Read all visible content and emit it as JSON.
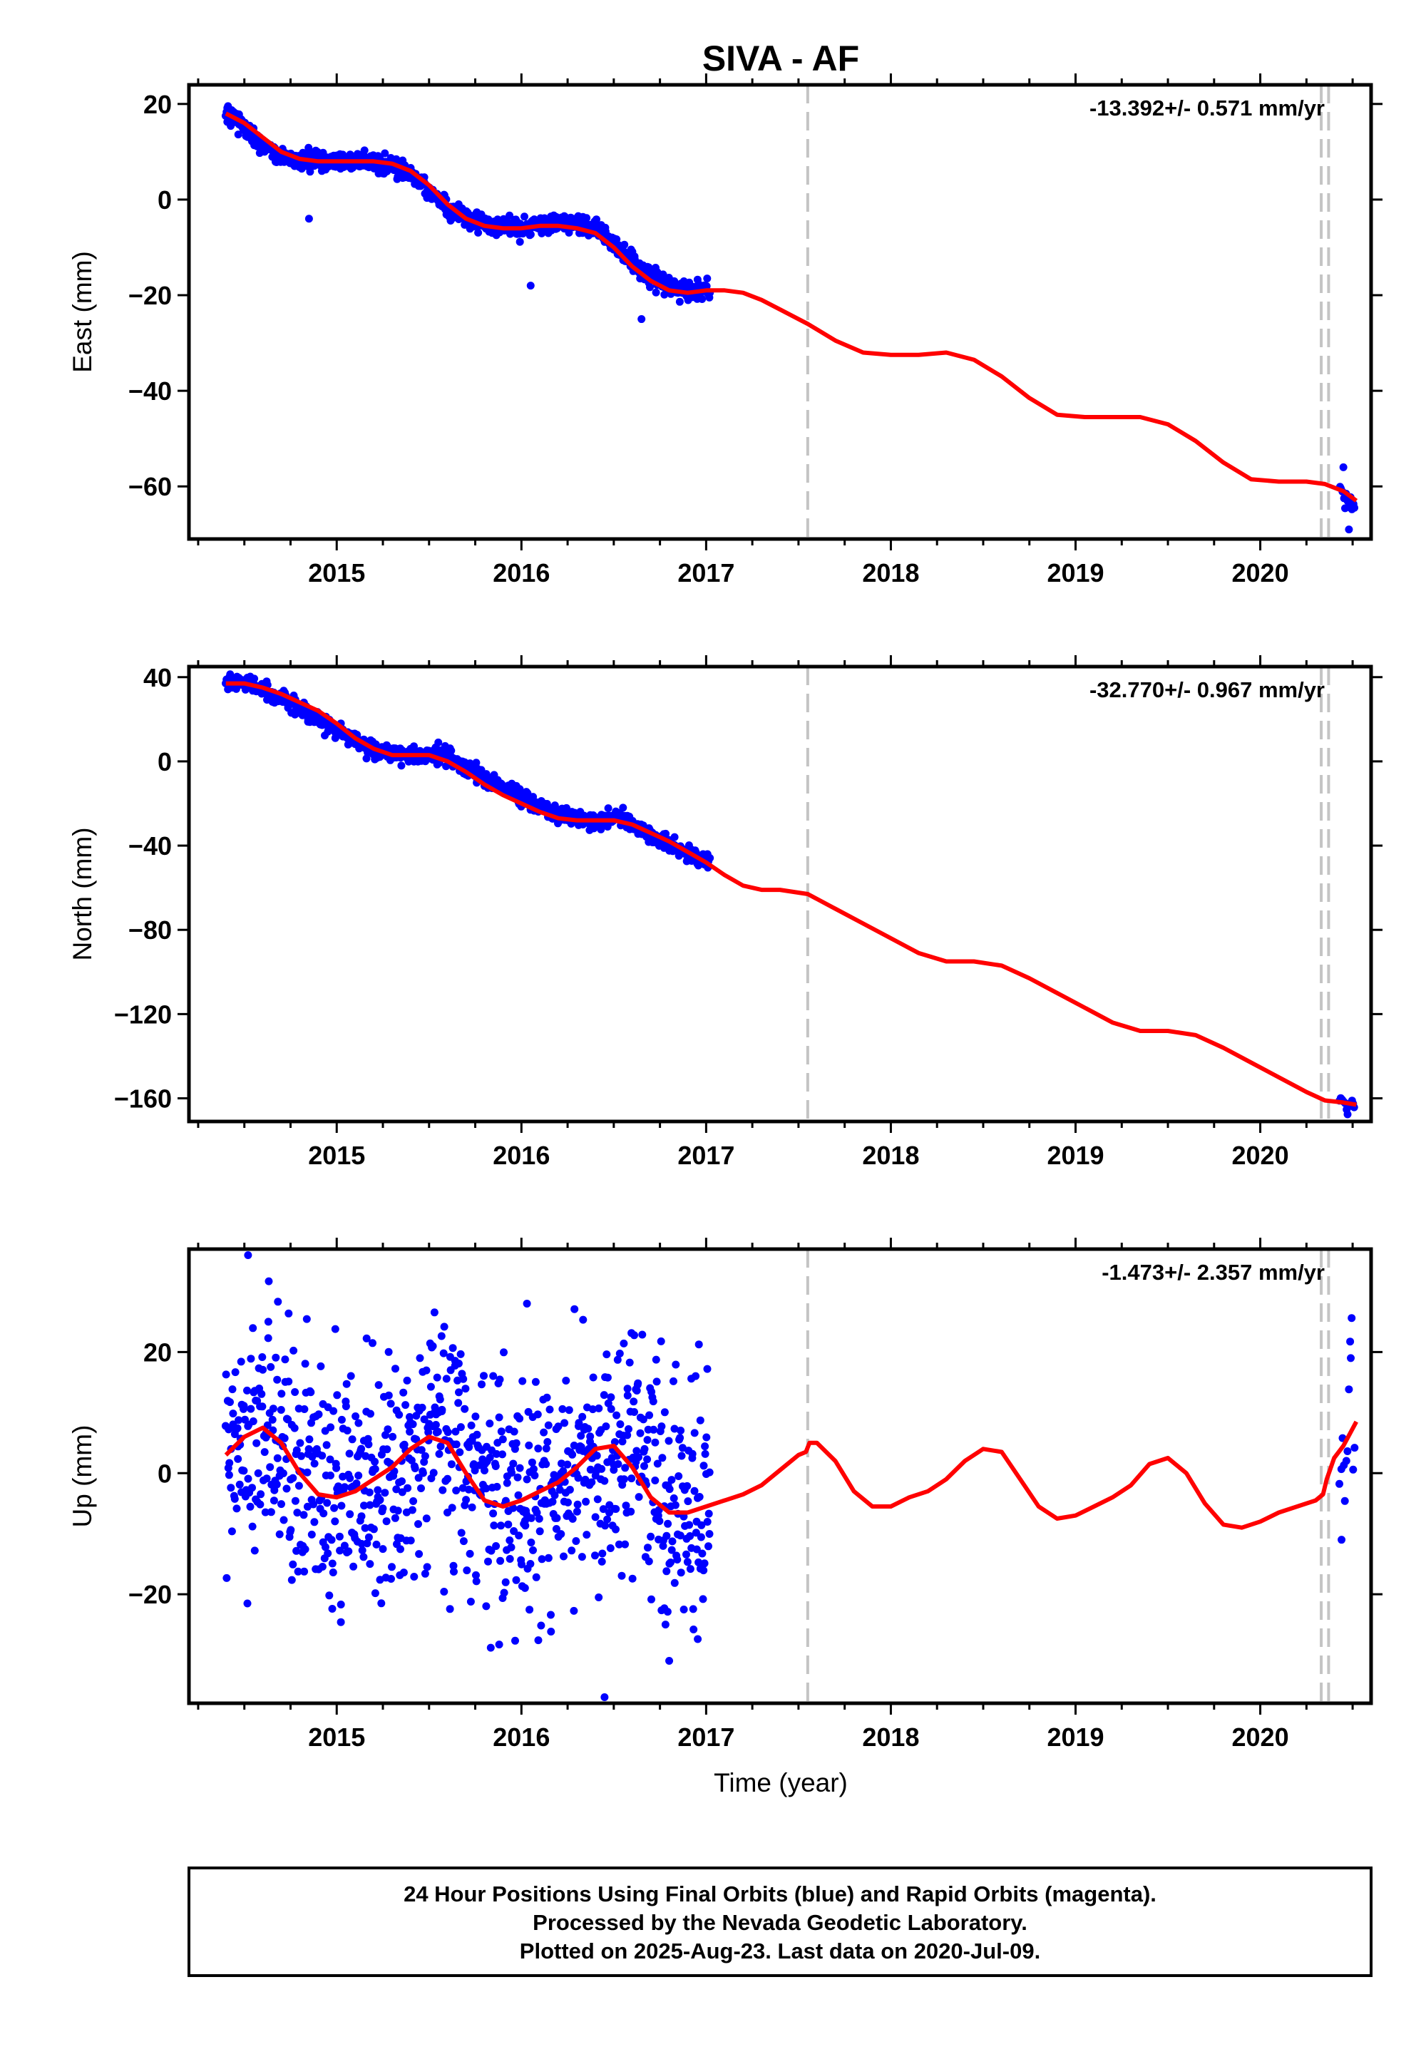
{
  "page": {
    "title": "SIVA - AF",
    "xlabel": "Time (year)",
    "footer_lines": [
      "24 Hour Positions Using Final Orbits (blue) and Rapid Orbits (magenta).",
      "Processed by the Nevada Geodetic Laboratory.",
      "Plotted on 2025-Aug-23. Last data on 2020-Jul-09."
    ]
  },
  "chart_data": [
    {
      "type": "scatter",
      "title": "SIVA - AF",
      "ylabel": "East (mm)",
      "xlabel": "",
      "rate": "-13.392+/- 0.571 mm/yr",
      "xlim": [
        2014.2,
        2020.6
      ],
      "ylim": [
        -71,
        24
      ],
      "x_ticks": [
        2015,
        2016,
        2017,
        2018,
        2019,
        2020
      ],
      "y_ticks": [
        20,
        0,
        -20,
        -40,
        -60
      ],
      "vlines": [
        2017.55,
        2020.33,
        2020.37
      ],
      "series": [
        {
          "role": "observations",
          "color": "#0000ff",
          "x": [
            2014.4,
            2014.45,
            2014.5,
            2014.55,
            2014.6,
            2014.65,
            2014.7,
            2014.75,
            2014.8,
            2014.85,
            2014.9,
            2014.95,
            2015.0,
            2015.1,
            2015.2,
            2015.3,
            2015.4,
            2015.5,
            2015.6,
            2015.7,
            2015.8,
            2015.9,
            2016.0,
            2016.1,
            2016.2,
            2016.3,
            2016.4,
            2016.5,
            2016.6,
            2016.7,
            2016.8,
            2016.9,
            2017.0,
            2020.43,
            2020.47,
            2020.5
          ],
          "y": [
            18,
            17,
            15,
            13,
            11,
            10,
            9,
            9,
            8,
            8,
            8,
            8,
            8,
            8,
            8,
            7,
            5,
            2,
            -2,
            -4,
            -5,
            -6,
            -6,
            -5,
            -5,
            -5,
            -6,
            -9,
            -13,
            -16,
            -18,
            -19,
            -19,
            -60,
            -63,
            -64
          ],
          "outliers_x": [
            2014.85,
            2016.05,
            2016.65,
            2020.45,
            2020.48
          ],
          "outliers_y": [
            -4,
            -18,
            -25,
            -56,
            -69
          ]
        },
        {
          "role": "model",
          "color": "#ff0000",
          "x": [
            2014.4,
            2014.5,
            2014.6,
            2014.7,
            2014.8,
            2014.9,
            2015.0,
            2015.1,
            2015.2,
            2015.3,
            2015.4,
            2015.5,
            2015.6,
            2015.7,
            2015.8,
            2015.9,
            2016.0,
            2016.1,
            2016.2,
            2016.3,
            2016.4,
            2016.5,
            2016.6,
            2016.7,
            2016.8,
            2016.9,
            2017.0,
            2017.1,
            2017.2,
            2017.3,
            2017.4,
            2017.55,
            2017.7,
            2017.85,
            2018.0,
            2018.15,
            2018.3,
            2018.45,
            2018.6,
            2018.75,
            2018.9,
            2019.05,
            2019.2,
            2019.35,
            2019.5,
            2019.65,
            2019.8,
            2019.95,
            2020.1,
            2020.25,
            2020.35,
            2020.45,
            2020.52
          ],
          "y": [
            18,
            16,
            13,
            10,
            8.5,
            8,
            8,
            8,
            8,
            7.5,
            6,
            3,
            -1,
            -4,
            -5.5,
            -6,
            -6,
            -5.5,
            -5.5,
            -6,
            -7,
            -10,
            -14,
            -17,
            -19,
            -19.5,
            -19,
            -19,
            -19.5,
            -21,
            -23,
            -26,
            -29.5,
            -32,
            -32.5,
            -32.5,
            -32,
            -33.5,
            -37,
            -41.5,
            -45,
            -45.5,
            -45.5,
            -45.5,
            -47,
            -50.5,
            -55,
            -58.5,
            -59,
            -59,
            -59.5,
            -61,
            -63
          ]
        }
      ]
    },
    {
      "type": "scatter",
      "ylabel": "North (mm)",
      "xlabel": "",
      "rate": "-32.770+/- 0.967 mm/yr",
      "xlim": [
        2014.2,
        2020.6
      ],
      "ylim": [
        -171,
        45
      ],
      "x_ticks": [
        2015,
        2016,
        2017,
        2018,
        2019,
        2020
      ],
      "y_ticks": [
        40,
        0,
        -40,
        -80,
        -120,
        -160
      ],
      "vlines": [
        2017.55,
        2020.33,
        2020.37
      ],
      "series": [
        {
          "role": "observations",
          "color": "#0000ff",
          "x": [
            2014.4,
            2014.45,
            2014.5,
            2014.55,
            2014.6,
            2014.65,
            2014.7,
            2014.75,
            2014.8,
            2014.85,
            2014.9,
            2014.95,
            2015.0,
            2015.1,
            2015.2,
            2015.3,
            2015.4,
            2015.5,
            2015.6,
            2015.7,
            2015.8,
            2015.9,
            2016.0,
            2016.1,
            2016.2,
            2016.3,
            2016.4,
            2016.5,
            2016.6,
            2016.7,
            2016.8,
            2016.9,
            2017.0,
            2020.43,
            2020.47,
            2020.5
          ],
          "y": [
            38,
            38,
            37,
            36,
            34,
            32,
            30,
            28,
            25,
            22,
            20,
            17,
            15,
            10,
            6,
            4,
            3,
            3,
            2,
            -3,
            -8,
            -12,
            -17,
            -21,
            -25,
            -27,
            -28,
            -27,
            -30,
            -35,
            -40,
            -44,
            -47,
            -162,
            -163,
            -164
          ],
          "outliers_x": [
            2015.05,
            2015.35,
            2015.55,
            2016.55
          ],
          "outliers_y": [
            13,
            -2,
            9,
            -22
          ],
          "vertical_spread": 3
        },
        {
          "role": "model",
          "color": "#ff0000",
          "x": [
            2014.4,
            2014.5,
            2014.6,
            2014.7,
            2014.8,
            2014.9,
            2015.0,
            2015.1,
            2015.2,
            2015.3,
            2015.4,
            2015.5,
            2015.6,
            2015.7,
            2015.8,
            2015.9,
            2016.0,
            2016.1,
            2016.2,
            2016.3,
            2016.4,
            2016.5,
            2016.6,
            2016.7,
            2016.8,
            2016.9,
            2017.0,
            2017.1,
            2017.2,
            2017.3,
            2017.4,
            2017.55,
            2017.7,
            2017.85,
            2018.0,
            2018.15,
            2018.3,
            2018.45,
            2018.6,
            2018.75,
            2018.9,
            2019.05,
            2019.2,
            2019.35,
            2019.5,
            2019.65,
            2019.8,
            2019.95,
            2020.1,
            2020.25,
            2020.35,
            2020.45,
            2020.52
          ],
          "y": [
            37,
            37,
            35,
            32,
            28,
            24,
            18,
            11,
            6,
            3,
            3,
            3,
            0,
            -5,
            -11,
            -16,
            -20,
            -24,
            -27,
            -28,
            -28,
            -28,
            -30,
            -34,
            -38,
            -43,
            -48,
            -54,
            -59,
            -61,
            -61,
            -63,
            -70,
            -77,
            -84,
            -91,
            -95,
            -95,
            -97,
            -103,
            -110,
            -117,
            -124,
            -128,
            -128,
            -130,
            -136,
            -143,
            -150,
            -157,
            -161,
            -162,
            -163
          ]
        }
      ]
    },
    {
      "type": "scatter",
      "ylabel": "Up (mm)",
      "xlabel": "Time (year)",
      "rate": "-1.473+/- 2.357 mm/yr",
      "xlim": [
        2014.2,
        2020.6
      ],
      "ylim": [
        -38,
        37
      ],
      "x_ticks": [
        2015,
        2016,
        2017,
        2018,
        2019,
        2020
      ],
      "y_ticks": [
        20,
        0,
        -20
      ],
      "vlines": [
        2017.55,
        2020.33,
        2020.37
      ],
      "series": [
        {
          "role": "observations",
          "color": "#0000ff",
          "x": [
            2014.4,
            2014.5,
            2014.6,
            2014.7,
            2014.8,
            2014.9,
            2015.0,
            2015.1,
            2015.2,
            2015.3,
            2015.4,
            2015.5,
            2015.6,
            2015.7,
            2015.8,
            2015.9,
            2016.0,
            2016.1,
            2016.2,
            2016.3,
            2016.4,
            2016.5,
            2016.6,
            2016.7,
            2016.8,
            2016.9,
            2017.0,
            2020.43,
            2020.47,
            2020.5
          ],
          "y": [
            4,
            6,
            7,
            5,
            0,
            -4,
            -4,
            -3,
            -2,
            0,
            3,
            5,
            6,
            3,
            -2,
            -5,
            -5,
            -4,
            -3,
            -1,
            2,
            4,
            4,
            0,
            -4,
            -6,
            -7,
            4,
            8,
            8
          ],
          "outliers_x": [
            2014.52,
            2014.63,
            2015.18,
            2016.03,
            2016.45,
            2016.8,
            2016.78,
            2020.44,
            2020.49
          ],
          "outliers_y": [
            36,
            25,
            -15,
            28,
            -37,
            -31,
            -25,
            -11,
            19
          ],
          "vertical_spread": 16
        },
        {
          "role": "model",
          "color": "#ff0000",
          "x": [
            2014.4,
            2014.5,
            2014.6,
            2014.7,
            2014.8,
            2014.9,
            2015.0,
            2015.1,
            2015.2,
            2015.3,
            2015.4,
            2015.5,
            2015.6,
            2015.7,
            2015.8,
            2015.9,
            2016.0,
            2016.1,
            2016.2,
            2016.3,
            2016.4,
            2016.5,
            2016.6,
            2016.7,
            2016.8,
            2016.9,
            2017.0,
            2017.1,
            2017.2,
            2017.3,
            2017.4,
            2017.5,
            2017.54,
            2017.56,
            2017.6,
            2017.7,
            2017.8,
            2017.9,
            2018.0,
            2018.1,
            2018.2,
            2018.3,
            2018.4,
            2018.5,
            2018.6,
            2018.7,
            2018.8,
            2018.9,
            2019.0,
            2019.1,
            2019.2,
            2019.3,
            2019.4,
            2019.5,
            2019.6,
            2019.7,
            2019.8,
            2019.9,
            2020.0,
            2020.1,
            2020.2,
            2020.3,
            2020.34,
            2020.36,
            2020.4,
            2020.45,
            2020.52
          ],
          "y": [
            3,
            6,
            7.5,
            5,
            0,
            -3.5,
            -4,
            -3,
            -1,
            1,
            4,
            6,
            5,
            0,
            -4.5,
            -5.5,
            -4.5,
            -3,
            -1.5,
            1,
            4,
            4.5,
            1,
            -4,
            -6.5,
            -6.5,
            -5.5,
            -4.5,
            -3.5,
            -2,
            0.5,
            3,
            3.5,
            5,
            5,
            2,
            -3,
            -5.5,
            -5.5,
            -4,
            -3,
            -1,
            2,
            4,
            3.5,
            -1,
            -5.5,
            -7.5,
            -7,
            -5.5,
            -4,
            -2,
            1.5,
            2.5,
            0,
            -5,
            -8.5,
            -9,
            -8,
            -6.5,
            -5.5,
            -4.5,
            -3.5,
            -1,
            2.5,
            4.5,
            8.5
          ]
        }
      ]
    }
  ]
}
